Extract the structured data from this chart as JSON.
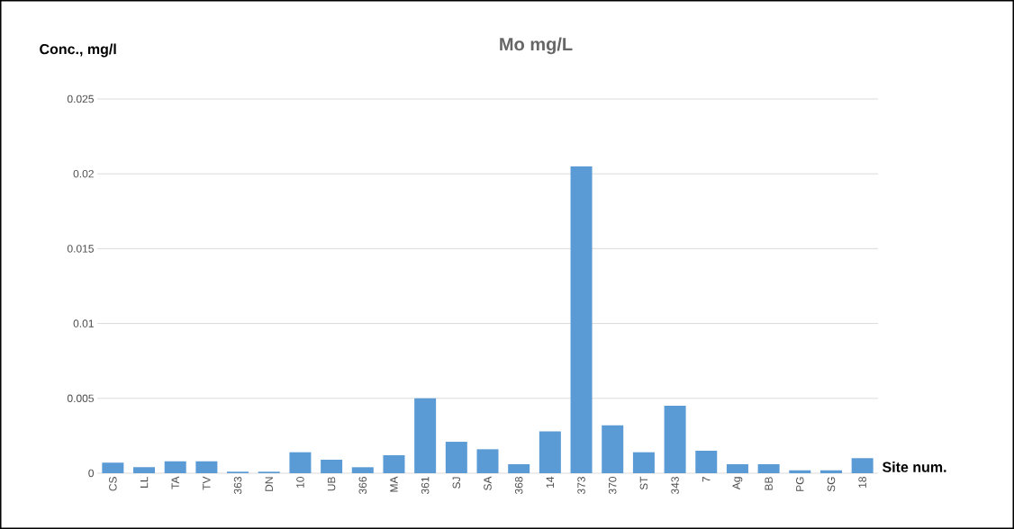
{
  "chart_data": {
    "type": "bar",
    "title": "Mo mg/L",
    "ylabel": "Conc., mg/l",
    "xlabel": "Site num.",
    "categories": [
      "CS",
      "LL",
      "TA",
      "TV",
      "363",
      "DN",
      "10",
      "UB",
      "366",
      "MA",
      "361",
      "SJ",
      "SA",
      "368",
      "14",
      "373",
      "370",
      "ST",
      "343",
      "7",
      "Ag",
      "BB",
      "PG",
      "SG",
      "18"
    ],
    "values": [
      0.0007,
      0.0004,
      0.0008,
      0.0008,
      0.0001,
      0.0001,
      0.0014,
      0.0009,
      0.0004,
      0.0012,
      0.005,
      0.0021,
      0.0016,
      0.0006,
      0.0028,
      0.0205,
      0.0032,
      0.0014,
      0.0045,
      0.0015,
      0.0006,
      0.0006,
      0.0002,
      0.0002,
      0.001
    ],
    "color": "#5b9bd5",
    "ylim": [
      0,
      0.025
    ],
    "yticks": [
      0,
      0.005,
      0.01,
      0.015,
      0.02,
      0.025
    ],
    "grid": "y"
  }
}
